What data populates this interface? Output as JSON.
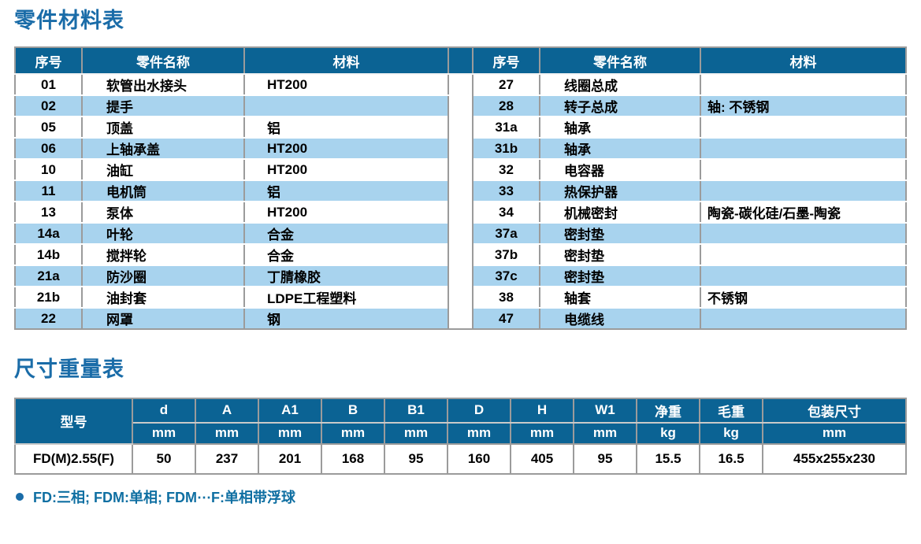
{
  "colors": {
    "header_bg": "#0b6394",
    "stripe_bg": "#a8d3ee",
    "title_blue": "#1a6ca8",
    "border_grey": "#9b9b9b"
  },
  "parts": {
    "title": "零件材料表",
    "columns": {
      "no": "序号",
      "name": "零件名称",
      "material": "材料"
    },
    "left_rows": [
      {
        "no": "01",
        "name": "软管出水接头",
        "material": "HT200"
      },
      {
        "no": "02",
        "name": "提手",
        "material": ""
      },
      {
        "no": "05",
        "name": "顶盖",
        "material": "铝"
      },
      {
        "no": "06",
        "name": "上轴承盖",
        "material": "HT200"
      },
      {
        "no": "10",
        "name": "油缸",
        "material": "HT200"
      },
      {
        "no": "11",
        "name": "电机筒",
        "material": "铝"
      },
      {
        "no": "13",
        "name": "泵体",
        "material": "HT200"
      },
      {
        "no": "14a",
        "name": "叶轮",
        "material": "合金"
      },
      {
        "no": "14b",
        "name": "搅拌轮",
        "material": "合金"
      },
      {
        "no": "21a",
        "name": "防沙圈",
        "material": "丁腈橡胶"
      },
      {
        "no": "21b",
        "name": "油封套",
        "material": "LDPE工程塑料"
      },
      {
        "no": "22",
        "name": "网罩",
        "material": "钢"
      }
    ],
    "right_rows": [
      {
        "no": "27",
        "name": "线圈总成",
        "material": ""
      },
      {
        "no": "28",
        "name": "转子总成",
        "material": "轴: 不锈钢"
      },
      {
        "no": "31a",
        "name": "轴承",
        "material": ""
      },
      {
        "no": "31b",
        "name": "轴承",
        "material": ""
      },
      {
        "no": "32",
        "name": "电容器",
        "material": ""
      },
      {
        "no": "33",
        "name": "热保护器",
        "material": ""
      },
      {
        "no": "34",
        "name": "机械密封",
        "material": "陶瓷-碳化硅/石墨-陶瓷"
      },
      {
        "no": "37a",
        "name": "密封垫",
        "material": ""
      },
      {
        "no": "37b",
        "name": "密封垫",
        "material": ""
      },
      {
        "no": "37c",
        "name": "密封垫",
        "material": ""
      },
      {
        "no": "38",
        "name": "轴套",
        "material": "不锈钢"
      },
      {
        "no": "47",
        "name": "电缆线",
        "material": ""
      }
    ]
  },
  "dims": {
    "title": "尺寸重量表",
    "model_header": "型号",
    "columns": [
      {
        "label": "d",
        "unit": "mm"
      },
      {
        "label": "A",
        "unit": "mm"
      },
      {
        "label": "A1",
        "unit": "mm"
      },
      {
        "label": "B",
        "unit": "mm"
      },
      {
        "label": "B1",
        "unit": "mm"
      },
      {
        "label": "D",
        "unit": "mm"
      },
      {
        "label": "H",
        "unit": "mm"
      },
      {
        "label": "W1",
        "unit": "mm"
      },
      {
        "label": "净重",
        "unit": "kg"
      },
      {
        "label": "毛重",
        "unit": "kg"
      },
      {
        "label": "包装尺寸",
        "unit": "mm"
      }
    ],
    "rows": [
      {
        "model": "FD(M)2.55(F)",
        "values": [
          "50",
          "237",
          "201",
          "168",
          "95",
          "160",
          "405",
          "95",
          "15.5",
          "16.5",
          "455x255x230"
        ]
      }
    ],
    "footnote": "FD:三相; FDM:单相; FDM⋯F:单相带浮球"
  }
}
